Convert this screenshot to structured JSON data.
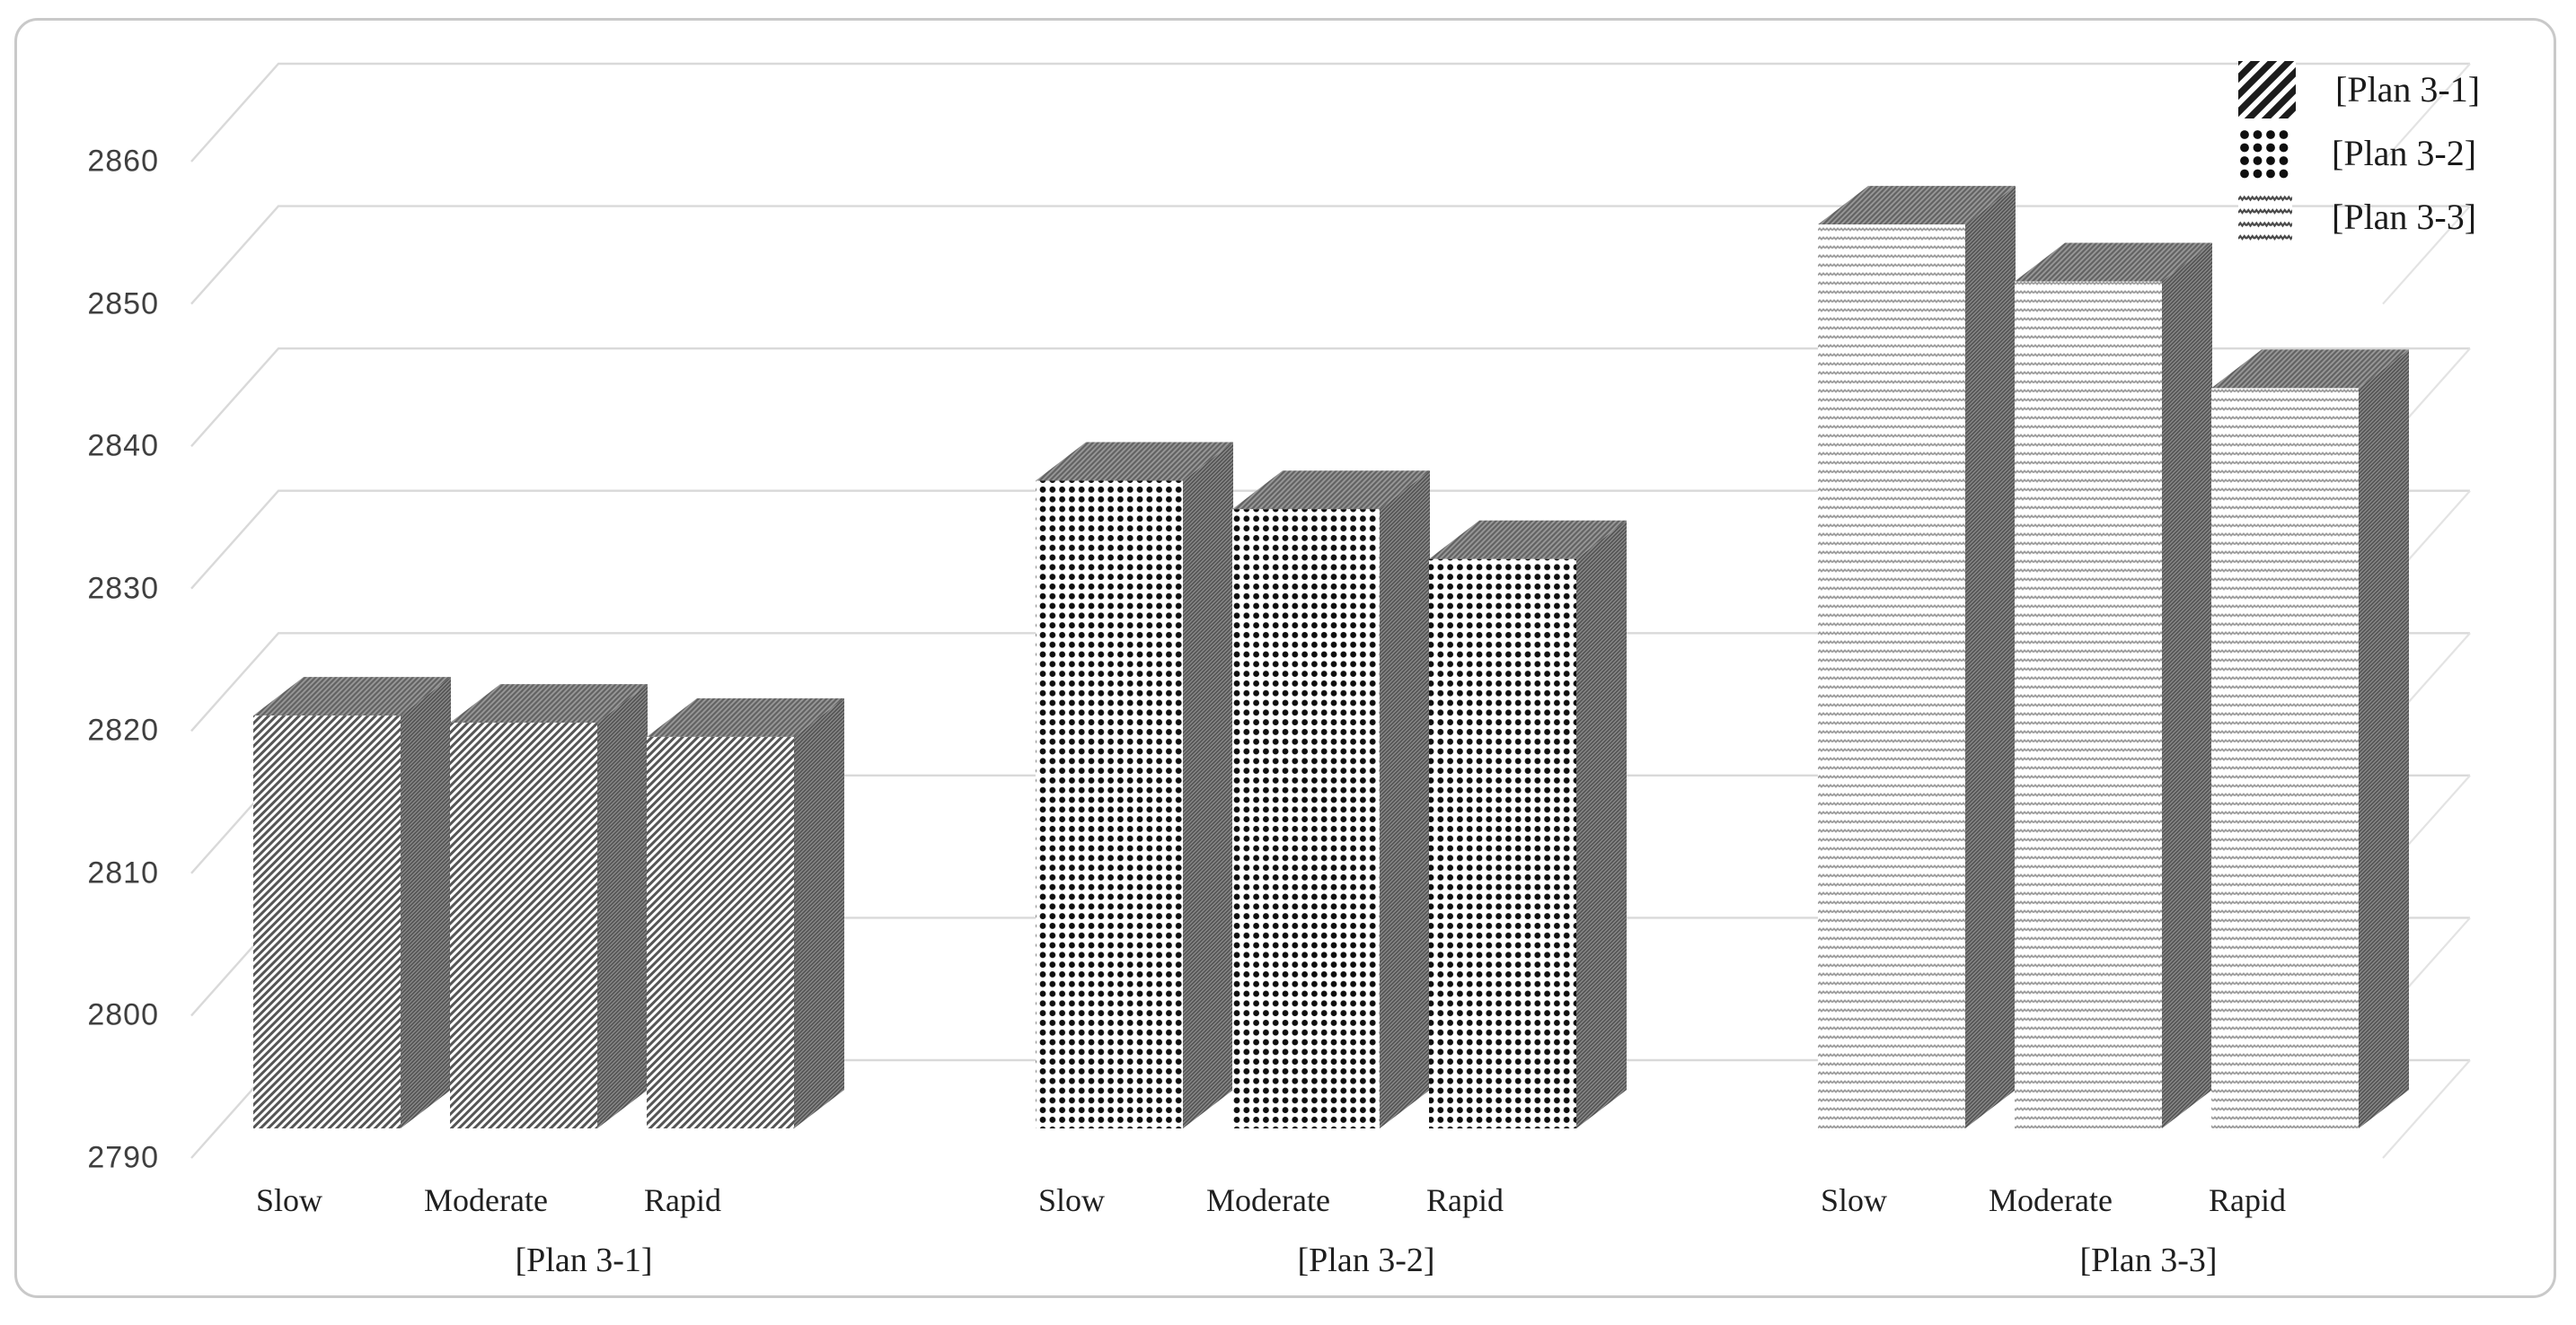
{
  "chart_data": {
    "type": "bar",
    "style": "3d-column",
    "title": "",
    "xlabel": "",
    "ylabel": "",
    "categories": [
      "Slow",
      "Moderate",
      "Rapid"
    ],
    "series": [
      {
        "name": "[Plan 3-1]",
        "pattern": "diagonal-stripes",
        "values": [
          2819,
          2818.5,
          2817.5
        ]
      },
      {
        "name": "[Plan 3-2]",
        "pattern": "dot-grid",
        "values": [
          2835.5,
          2833.5,
          2830
        ]
      },
      {
        "name": "[Plan 3-3]",
        "pattern": "horizontal-waves",
        "values": [
          2853.5,
          2849.5,
          2842
        ]
      }
    ],
    "ylim": [
      2790,
      2860
    ],
    "ytick_step": 10,
    "yticks": [
      2790,
      2800,
      2810,
      2820,
      2830,
      2840,
      2850,
      2860
    ],
    "grid": true,
    "legend_position": "top-right",
    "group_axis_labels": [
      "[Plan 3-1]",
      "[Plan 3-2]",
      "[Plan 3-3]"
    ]
  },
  "colors": {
    "text_primary": "#1f1f1f",
    "tick_text": "#3f3f3f",
    "gridline": "#d9d9d9",
    "frame_border": "#c9c9c9",
    "pattern_dark": "#555555",
    "bar_top_base": "#989898",
    "bar_side_base": "#8e8e8e",
    "background": "#ffffff"
  }
}
